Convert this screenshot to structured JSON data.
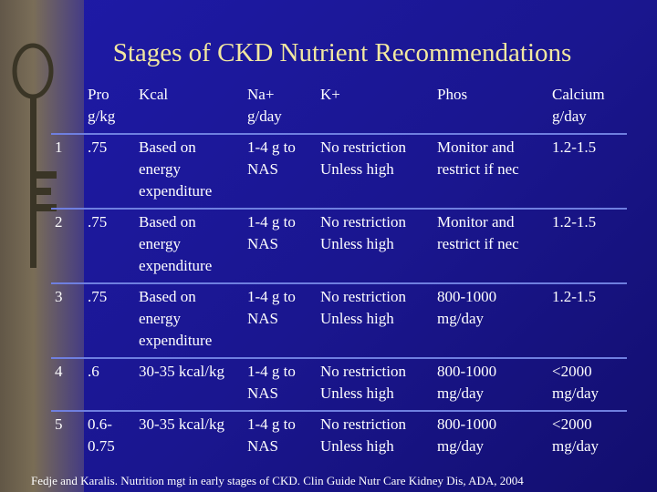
{
  "title": "Stages of CKD Nutrient Recommendations",
  "headers": {
    "pro_line1": "Pro",
    "pro_line2": "g/kg",
    "kcal": "Kcal",
    "na_line1": "Na+",
    "na_line2": "g/day",
    "k": "K+",
    "phos": "Phos",
    "ca_line1": "Calcium",
    "ca_line2": "g/day"
  },
  "rows": [
    {
      "stage": "1",
      "pro": ".75",
      "kcal": "Based on energy expenditure",
      "na": "1-4 g to NAS",
      "k1": "No restriction",
      "k2": "Unless high",
      "phos": "Monitor and restrict if nec",
      "ca": "1.2-1.5"
    },
    {
      "stage": "2",
      "pro": ".75",
      "kcal": "Based on energy expenditure",
      "na": "1-4 g to NAS",
      "k1": "No restriction",
      "k2": "Unless high",
      "phos": "Monitor and restrict if nec",
      "ca": "1.2-1.5"
    },
    {
      "stage": "3",
      "pro": ".75",
      "kcal": "Based on energy expenditure",
      "na": "1-4 g to NAS",
      "k1": "No restriction",
      "k2": "Unless high",
      "phos": "800-1000 mg/day",
      "ca": "1.2-1.5"
    },
    {
      "stage": "4",
      "pro": ".6",
      "kcal": "30-35 kcal/kg",
      "na": "1-4 g to NAS",
      "k1": "No restriction",
      "k2": "Unless high",
      "phos": "800-1000 mg/day",
      "ca": "<2000 mg/day"
    },
    {
      "stage": "5",
      "pro": "0.6- 0.75",
      "kcal": "30-35 kcal/kg",
      "na": "1-4 g to NAS",
      "k1": "No restriction",
      "k2": "Unless high",
      "phos": "800-1000 mg/day",
      "ca": "<2000 mg/day"
    }
  ],
  "footnote": "Fedje and Karalis. Nutrition mgt in early stages of CKD. Clin Guide Nutr Care Kidney Dis, ADA, 2004"
}
